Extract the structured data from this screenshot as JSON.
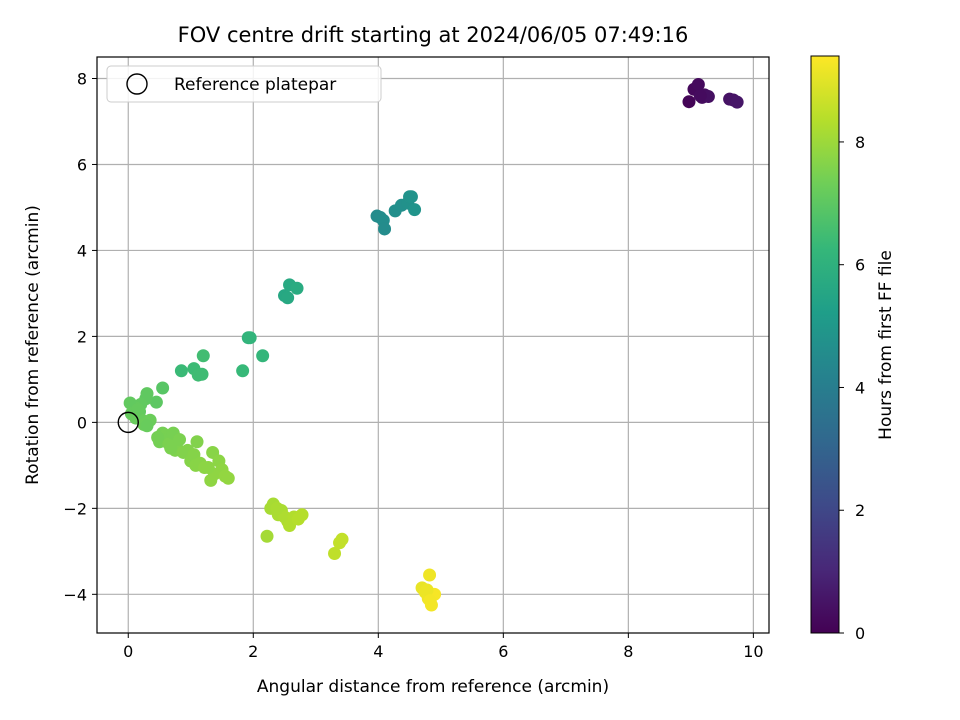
{
  "chart_data": {
    "type": "scatter",
    "title": "FOV centre drift starting at 2024/06/05 07:49:16",
    "xlabel": "Angular distance from reference (arcmin)",
    "ylabel": "Rotation from reference (arcmin)",
    "xlim": [
      -0.5,
      10.25
    ],
    "ylim": [
      -4.9,
      8.5
    ],
    "xticks": [
      0,
      2,
      4,
      6,
      8,
      10
    ],
    "yticks": [
      -4,
      -2,
      0,
      2,
      4,
      6,
      8
    ],
    "grid": true,
    "legend": {
      "placement": "top-left",
      "entries": [
        {
          "label": "Reference platepar",
          "marker": "open-circle",
          "x": 0,
          "y": 0
        }
      ]
    },
    "colorbar": {
      "label": "Hours from first FF file",
      "colormap": "viridis",
      "range": [
        0,
        9.4
      ],
      "ticks": [
        0,
        2,
        4,
        6,
        8
      ]
    },
    "series": [
      {
        "x": [
          8.97,
          9.05,
          9.12,
          9.18,
          9.22,
          9.28,
          9.62,
          9.68,
          9.74,
          9.15
        ],
        "y": [
          7.46,
          7.75,
          7.86,
          7.56,
          7.62,
          7.58,
          7.52,
          7.5,
          7.45,
          7.6
        ],
        "c": [
          0.1,
          0.2,
          0.25,
          0.3,
          0.32,
          0.38,
          0.45,
          0.5,
          0.55,
          0.28
        ]
      },
      {
        "x": [
          3.98,
          4.03,
          4.08,
          4.1,
          4.27,
          4.37,
          4.47,
          4.5,
          4.53,
          4.58
        ],
        "y": [
          4.8,
          4.77,
          4.7,
          4.5,
          4.92,
          5.05,
          5.1,
          5.25,
          5.25,
          4.95
        ],
        "c": [
          4.5,
          4.55,
          4.6,
          4.55,
          4.65,
          4.7,
          4.75,
          4.8,
          4.82,
          4.85
        ]
      },
      {
        "x": [
          2.5,
          2.55,
          2.58,
          2.7,
          1.92,
          1.95,
          2.15
        ],
        "y": [
          2.95,
          2.9,
          3.2,
          3.12,
          1.97,
          1.97,
          1.55
        ],
        "c": [
          5.6,
          5.65,
          5.7,
          5.75,
          6.1,
          6.15,
          6.2
        ]
      },
      {
        "x": [
          0.85,
          1.05,
          1.12,
          1.18,
          1.2,
          1.83,
          0.55,
          0.45,
          0.3,
          0.28,
          0.2,
          0.18,
          0.1,
          0.03,
          0.05,
          0.12,
          0.22,
          0.35,
          0.25,
          0.3,
          0.15
        ],
        "y": [
          1.2,
          1.25,
          1.1,
          1.12,
          1.55,
          1.2,
          0.8,
          0.47,
          0.67,
          0.55,
          0.42,
          0.25,
          0.35,
          0.45,
          0.2,
          0.1,
          0.05,
          0.05,
          -0.05,
          -0.08,
          0.3
        ],
        "c": [
          6.35,
          6.4,
          6.45,
          6.45,
          6.5,
          6.3,
          6.9,
          7.0,
          7.05,
          7.05,
          7.1,
          7.1,
          7.15,
          7.1,
          7.15,
          7.2,
          7.2,
          7.25,
          7.25,
          7.2,
          7.15
        ]
      },
      {
        "x": [
          0.5,
          0.55,
          0.6,
          0.62,
          0.65,
          0.7,
          0.72,
          0.75,
          0.78,
          0.82,
          0.88,
          0.95,
          1.0,
          1.05,
          1.08,
          1.1,
          1.15,
          1.22,
          1.32,
          1.35,
          1.38,
          1.45,
          1.5,
          1.55,
          1.6,
          0.47,
          0.68,
          1.28
        ],
        "y": [
          -0.45,
          -0.25,
          -0.3,
          -0.4,
          -0.5,
          -0.55,
          -0.25,
          -0.65,
          -0.6,
          -0.4,
          -0.7,
          -0.65,
          -0.9,
          -0.75,
          -1.0,
          -0.45,
          -0.95,
          -1.05,
          -1.35,
          -0.7,
          -1.2,
          -0.9,
          -1.1,
          -1.25,
          -1.3,
          -0.35,
          -0.6,
          -1.05
        ],
        "c": [
          7.4,
          7.4,
          7.45,
          7.45,
          7.5,
          7.5,
          7.45,
          7.55,
          7.55,
          7.5,
          7.6,
          7.6,
          7.65,
          7.65,
          7.7,
          7.6,
          7.7,
          7.75,
          7.8,
          7.7,
          7.8,
          7.75,
          7.8,
          7.85,
          7.85,
          7.4,
          7.5,
          7.75
        ]
      },
      {
        "x": [
          2.22,
          2.28,
          2.32,
          2.4,
          2.45,
          2.5,
          2.55,
          2.58,
          2.65,
          2.72,
          2.78,
          3.3,
          3.38,
          3.42,
          2.38
        ],
        "y": [
          -2.65,
          -2.0,
          -1.9,
          -2.15,
          -2.05,
          -2.2,
          -2.3,
          -2.4,
          -2.2,
          -2.25,
          -2.15,
          -3.05,
          -2.8,
          -2.72,
          -2.0
        ],
        "c": [
          8.1,
          8.15,
          8.15,
          8.2,
          8.2,
          8.25,
          8.25,
          8.3,
          8.3,
          8.35,
          8.35,
          8.5,
          8.55,
          8.55,
          8.2
        ]
      },
      {
        "x": [
          4.7,
          4.75,
          4.8,
          4.82,
          4.85,
          4.88,
          4.9,
          4.78,
          4.83
        ],
        "y": [
          -3.85,
          -3.95,
          -4.1,
          -3.55,
          -4.25,
          -4.0,
          -4.0,
          -3.9,
          -4.15
        ],
        "c": [
          9.1,
          9.15,
          9.2,
          9.2,
          9.25,
          9.3,
          9.3,
          9.15,
          9.25
        ]
      }
    ]
  }
}
